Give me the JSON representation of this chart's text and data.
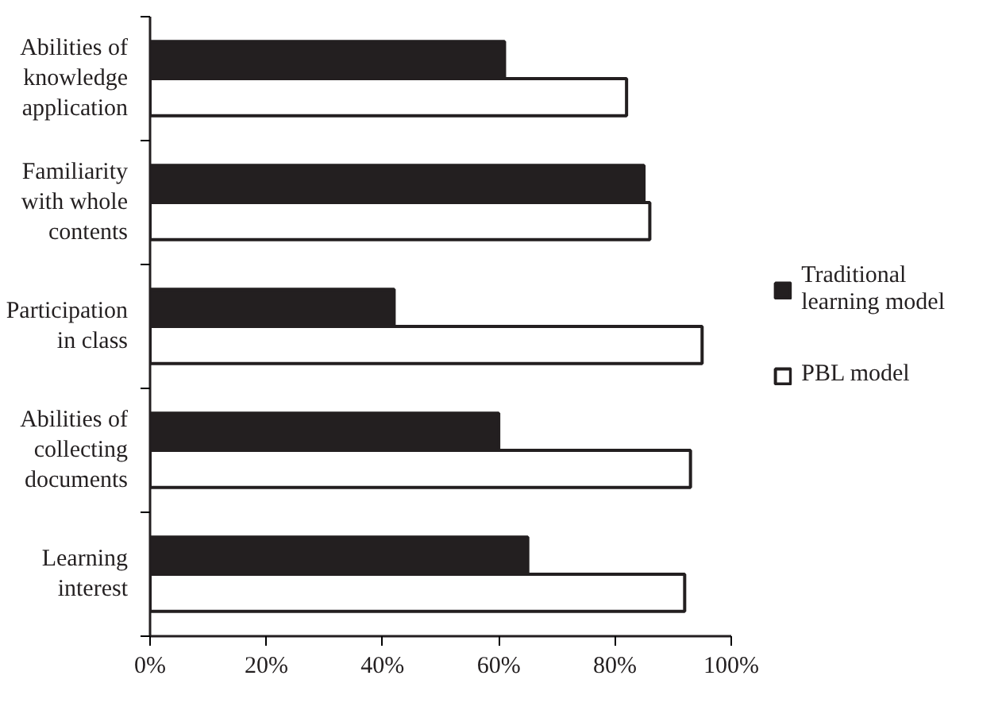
{
  "chart_data": {
    "type": "bar",
    "orientation": "horizontal",
    "categories": [
      "Abilities of knowledge application",
      "Familiarity with whole contents",
      "Participation in class",
      "Abilities of collecting documents",
      "Learning interest"
    ],
    "series": [
      {
        "name": "Traditional learning model",
        "color": "#231f20",
        "values": [
          61,
          85,
          42,
          60,
          65
        ]
      },
      {
        "name": "PBL model",
        "color": "#ffffff",
        "values": [
          82,
          86,
          95,
          93,
          92
        ]
      }
    ],
    "xlim": [
      0,
      100
    ],
    "xticks": [
      {
        "value": 0,
        "label": "0%"
      },
      {
        "value": 20,
        "label": "20%"
      },
      {
        "value": 40,
        "label": "40%"
      },
      {
        "value": 60,
        "label": "60%"
      },
      {
        "value": 80,
        "label": "80%"
      },
      {
        "value": 100,
        "label": "100%"
      }
    ],
    "grid": false,
    "legend": "right"
  }
}
